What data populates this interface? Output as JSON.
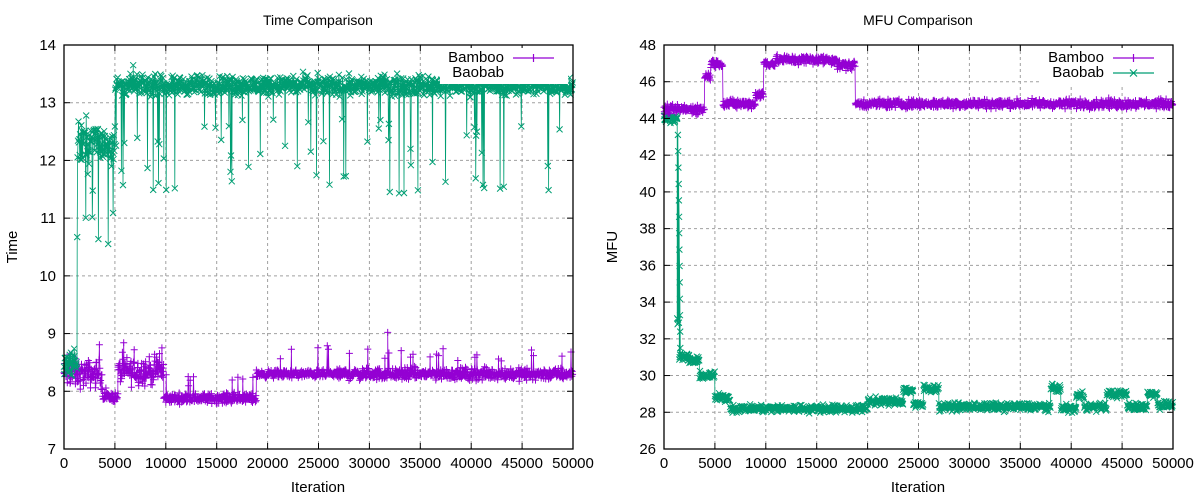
{
  "chart_data": [
    {
      "id": "time",
      "type": "scatter",
      "title": "Time Comparison",
      "xlabel": "Iteration",
      "ylabel": "Time",
      "xlim": [
        0,
        50000
      ],
      "ylim": [
        7,
        14
      ],
      "xticks": [
        0,
        5000,
        10000,
        15000,
        20000,
        25000,
        30000,
        35000,
        40000,
        45000,
        50000
      ],
      "yticks": [
        7,
        8,
        9,
        10,
        11,
        12,
        13,
        14
      ],
      "grid": true,
      "legend_position": "top-right",
      "series": [
        {
          "name": "Bamboo",
          "color": "#9400d3",
          "marker": "plus",
          "segments": [
            {
              "x": [
                0,
                3800
              ],
              "base": 8.3,
              "spread": 0.35,
              "spike_to": 8.85
            },
            {
              "x": [
                3800,
                5300
              ],
              "base": 7.9,
              "spread": 0.12,
              "spike_to": 8.1
            },
            {
              "x": [
                5300,
                9800
              ],
              "base": 8.35,
              "spread": 0.35,
              "spike_to": 8.85
            },
            {
              "x": [
                9800,
                18900
              ],
              "base": 7.88,
              "spread": 0.12,
              "spike_to": 8.3
            },
            {
              "x": [
                18900,
                27000
              ],
              "base": 8.3,
              "spread": 0.1,
              "spike_to": 8.8
            },
            {
              "x": [
                27000,
                50000
              ],
              "base": 8.3,
              "spread": 0.15,
              "spike_to": 8.75
            }
          ],
          "outliers": [
            {
              "x": 31800,
              "y": 9.02
            }
          ]
        },
        {
          "name": "Baobab",
          "color": "#009e73",
          "marker": "x",
          "segments": [
            {
              "x": [
                0,
                1300
              ],
              "base": 8.5,
              "spread": 0.3,
              "spike_to": 9.05
            },
            {
              "x": [
                1300,
                5000
              ],
              "base": 12.3,
              "spread": 0.6,
              "dip_to": 10.55
            },
            {
              "x": [
                5000,
                50000
              ],
              "base": 13.3,
              "spread": 0.25,
              "dip_to": 11.4
            }
          ],
          "peak": 13.65
        }
      ]
    },
    {
      "id": "mfu",
      "type": "scatter",
      "title": "MFU Comparison",
      "xlabel": "Iteration",
      "ylabel": "MFU",
      "xlim": [
        0,
        50000
      ],
      "ylim": [
        26,
        48
      ],
      "xticks": [
        0,
        5000,
        10000,
        15000,
        20000,
        25000,
        30000,
        35000,
        40000,
        45000,
        50000
      ],
      "yticks": [
        26,
        28,
        30,
        32,
        34,
        36,
        38,
        40,
        42,
        44,
        46,
        48
      ],
      "grid": true,
      "legend_position": "top-right",
      "series": [
        {
          "name": "Bamboo",
          "color": "#9400d3",
          "marker": "plus",
          "levels": [
            {
              "x": [
                0,
                4000
              ],
              "y": 44.5
            },
            {
              "x": [
                4000,
                4600
              ],
              "y": 46.3
            },
            {
              "x": [
                4600,
                5800
              ],
              "y": 47.0
            },
            {
              "x": [
                5800,
                9000
              ],
              "y": 44.8
            },
            {
              "x": [
                9000,
                9800
              ],
              "y": 45.3
            },
            {
              "x": [
                9800,
                11000
              ],
              "y": 47.0
            },
            {
              "x": [
                11000,
                17000
              ],
              "y": 47.2
            },
            {
              "x": [
                17000,
                18800
              ],
              "y": 46.9
            },
            {
              "x": [
                18800,
                50000
              ],
              "y": 44.8
            }
          ],
          "spread": 0.35
        },
        {
          "name": "Baobab",
          "color": "#009e73",
          "marker": "x",
          "levels": [
            {
              "x": [
                0,
                1300
              ],
              "y": 44.0
            },
            {
              "x": [
                1300,
                1500
              ],
              "y": 33.0
            },
            {
              "x": [
                1500,
                2500
              ],
              "y": 31.0
            },
            {
              "x": [
                2500,
                3500
              ],
              "y": 30.8
            },
            {
              "x": [
                3500,
                5000
              ],
              "y": 30.0
            },
            {
              "x": [
                5000,
                6500
              ],
              "y": 28.8
            },
            {
              "x": [
                6500,
                20000
              ],
              "y": 28.2
            },
            {
              "x": [
                20000,
                23500
              ],
              "y": 28.6
            },
            {
              "x": [
                23500,
                24500
              ],
              "y": 29.2
            },
            {
              "x": [
                24500,
                25500
              ],
              "y": 28.4
            },
            {
              "x": [
                25500,
                27000
              ],
              "y": 29.3
            },
            {
              "x": [
                27000,
                38000
              ],
              "y": 28.3
            },
            {
              "x": [
                38000,
                39000
              ],
              "y": 29.3
            },
            {
              "x": [
                39000,
                40500
              ],
              "y": 28.2
            },
            {
              "x": [
                40500,
                41300
              ],
              "y": 28.9
            },
            {
              "x": [
                41300,
                43500
              ],
              "y": 28.3
            },
            {
              "x": [
                43500,
                45500
              ],
              "y": 29.0
            },
            {
              "x": [
                45500,
                47500
              ],
              "y": 28.3
            },
            {
              "x": [
                47500,
                48500
              ],
              "y": 29.0
            },
            {
              "x": [
                48500,
                50000
              ],
              "y": 28.4
            }
          ],
          "transition": {
            "from_x": 1300,
            "from_y": 44.0,
            "to_x": 1600,
            "to_y": 31.5
          },
          "spread": 0.3
        }
      ]
    }
  ]
}
